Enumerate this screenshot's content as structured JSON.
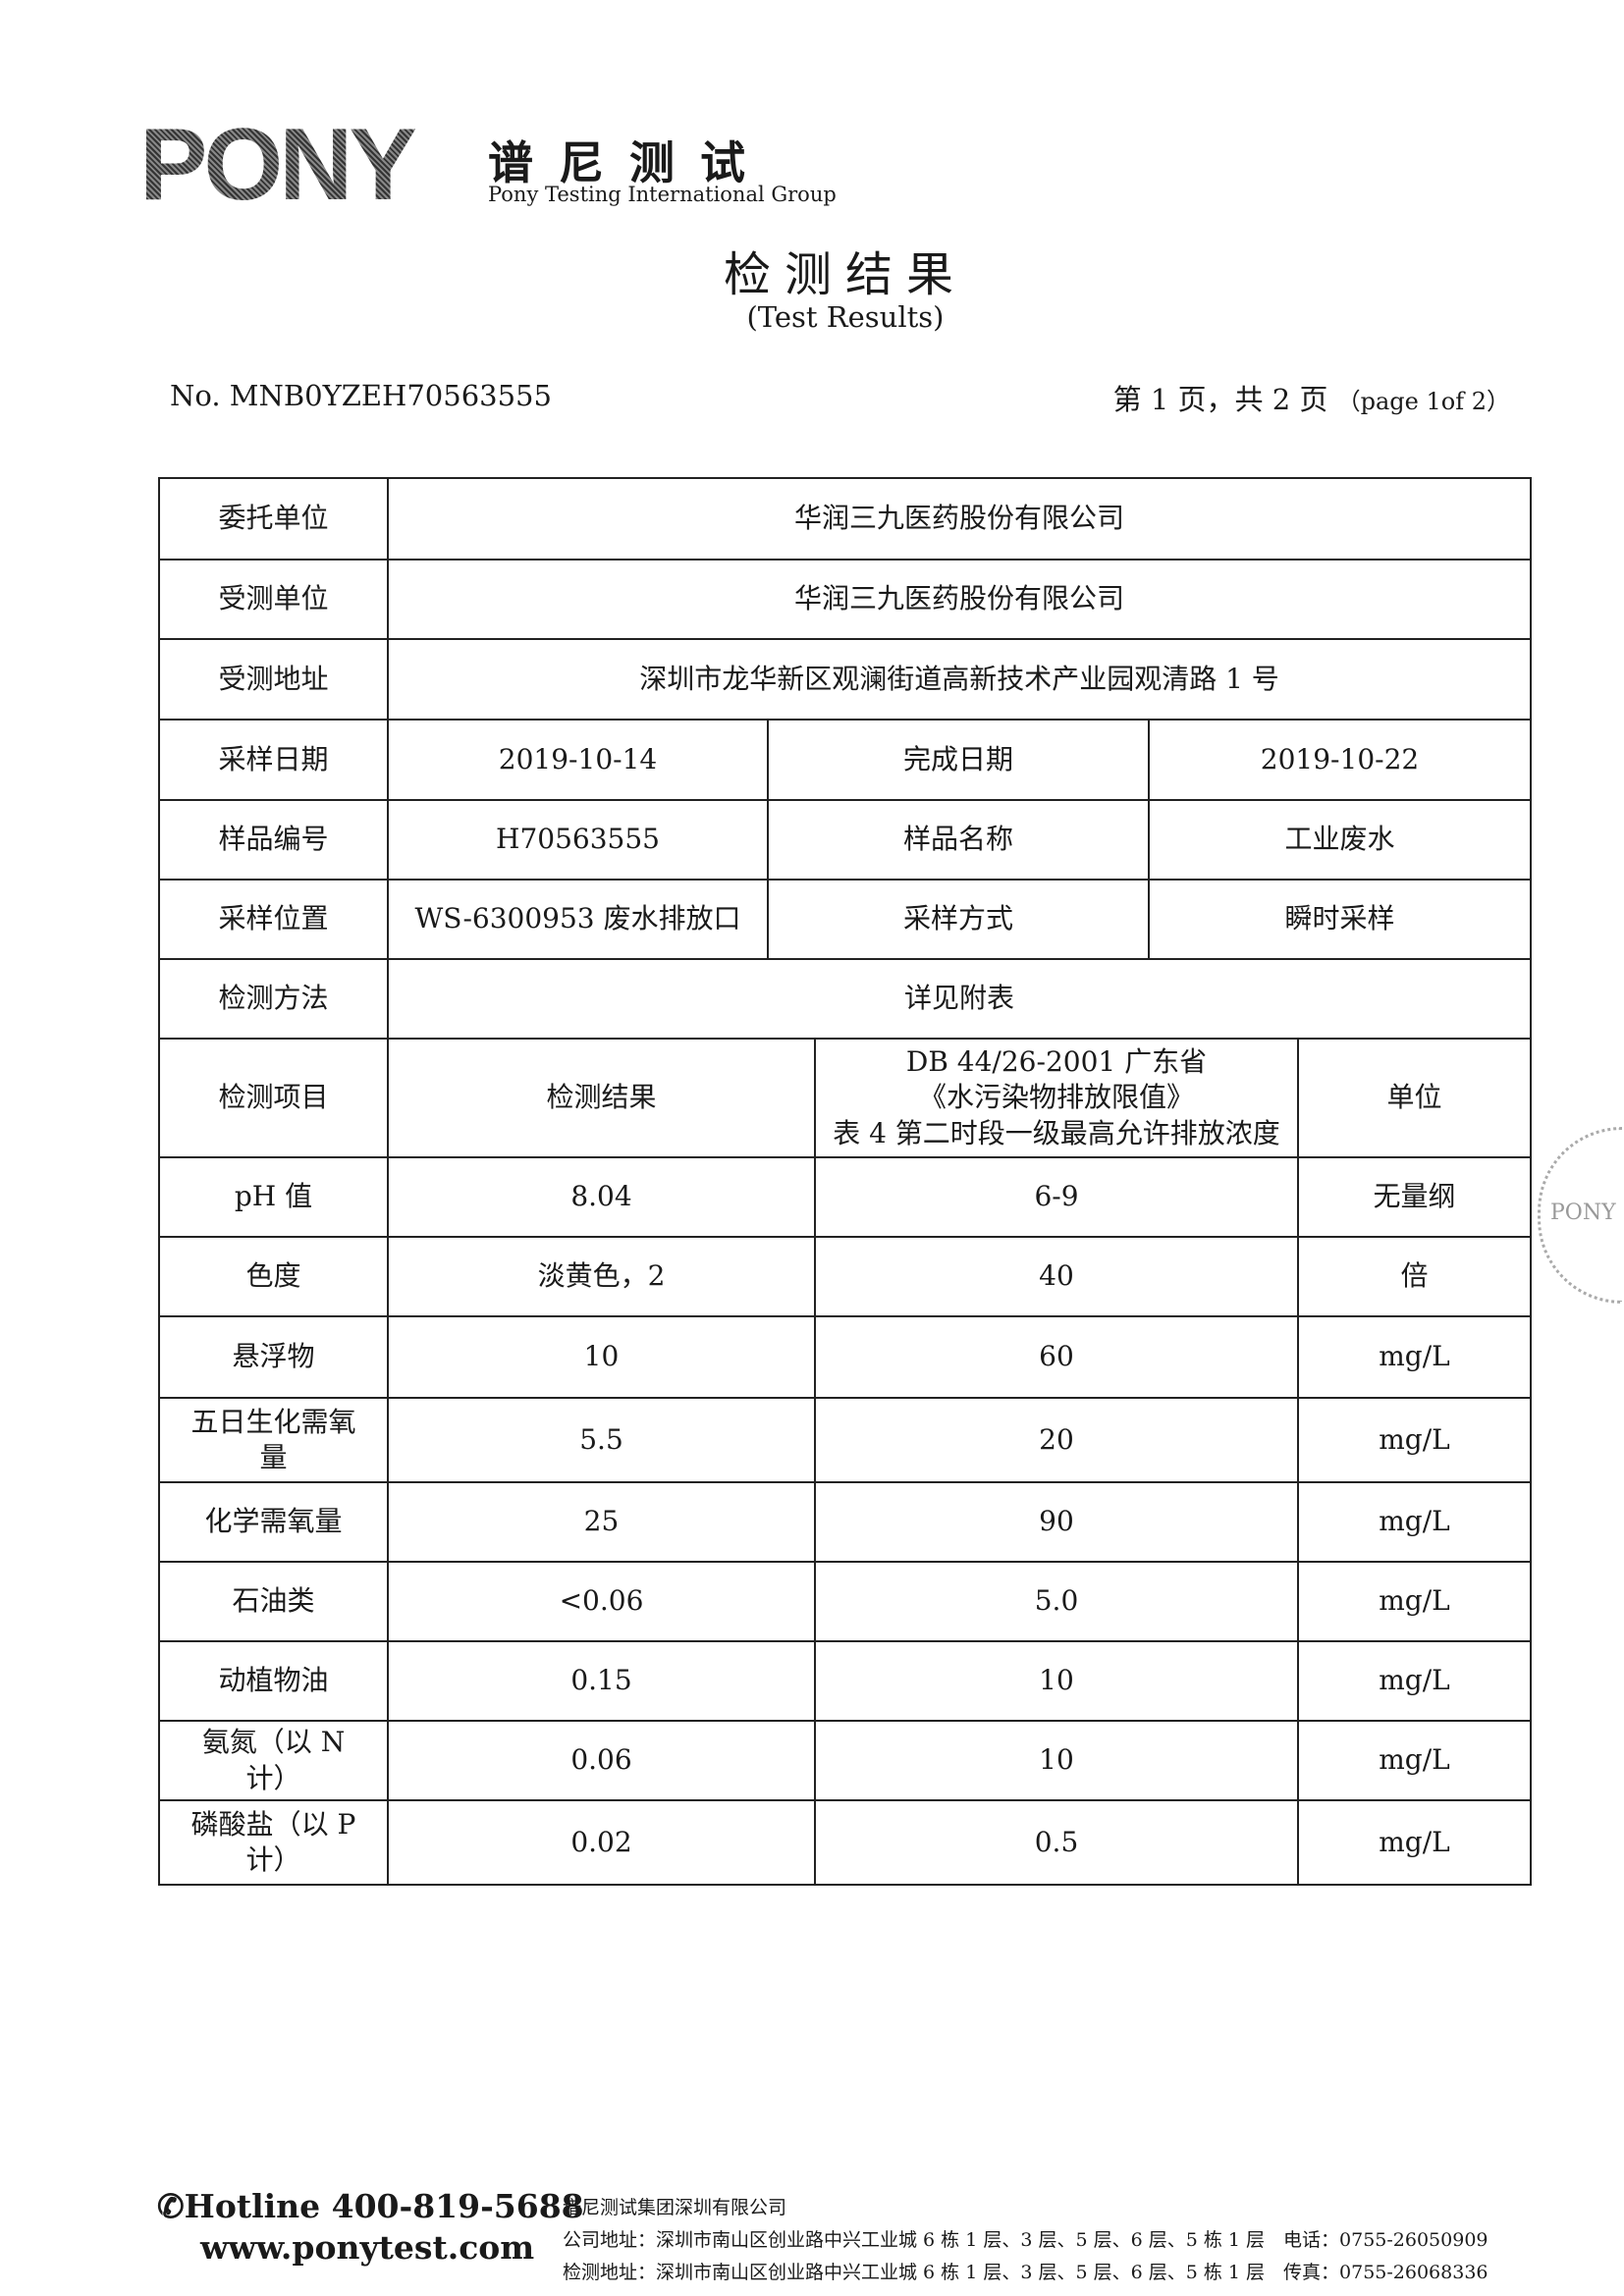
{
  "header": {
    "logo_text": "PONY",
    "brand_cn": "谱尼测试",
    "brand_en": "Pony Testing International Group",
    "title": "检测结果",
    "subtitle": "(Test Results)",
    "doc_no": "No. MNB0YZEH70563555",
    "page_cn": "第 1 页，共 2 页",
    "page_en": "（page 1of 2）"
  },
  "info": {
    "client_label": "委托单位",
    "client": "华润三九医药股份有限公司",
    "tested_label": "受测单位",
    "tested": "华润三九医药股份有限公司",
    "address_label": "受测地址",
    "address": "深圳市龙华新区观澜街道高新技术产业园观清路 1 号",
    "sampling_date_label": "采样日期",
    "sampling_date": "2019-10-14",
    "completion_date_label": "完成日期",
    "completion_date": "2019-10-22",
    "sample_no_label": "样品编号",
    "sample_no": "H70563555",
    "sample_name_label": "样品名称",
    "sample_name": "工业废水",
    "location_label": "采样位置",
    "location": "WS-6300953 废水排放口",
    "method_label": "采样方式",
    "method": "瞬时采样",
    "test_method_label": "检测方法",
    "test_method": "详见附表"
  },
  "results": {
    "headers": {
      "item": "检测项目",
      "result": "检测结果",
      "limit_line1": "DB 44/26-2001 广东省",
      "limit_line2": "《水污染物排放限值》",
      "limit_line3": "表 4 第二时段一级最高允许排放浓度",
      "unit": "单位"
    },
    "rows": [
      {
        "item": "pH 值",
        "result": "8.04",
        "limit": "6-9",
        "unit": "无量纲"
      },
      {
        "item": "色度",
        "result": "淡黄色，2",
        "limit": "40",
        "unit": "倍"
      },
      {
        "item": "悬浮物",
        "result": "10",
        "limit": "60",
        "unit": "mg/L"
      },
      {
        "item": "五日生化需氧量",
        "result": "5.5",
        "limit": "20",
        "unit": "mg/L"
      },
      {
        "item": "化学需氧量",
        "result": "25",
        "limit": "90",
        "unit": "mg/L"
      },
      {
        "item": "石油类",
        "result": "<0.06",
        "limit": "5.0",
        "unit": "mg/L"
      },
      {
        "item": "动植物油",
        "result": "0.15",
        "limit": "10",
        "unit": "mg/L"
      },
      {
        "item": "氨氮（以 N 计）",
        "result": "0.06",
        "limit": "10",
        "unit": "mg/L"
      },
      {
        "item": "磷酸盐（以 P 计）",
        "result": "0.02",
        "limit": "0.5",
        "unit": "mg/L"
      }
    ]
  },
  "stamp": {
    "text": "PONY"
  },
  "footer": {
    "hotline": "Hotline 400-819-5688",
    "website": "www.ponytest.com",
    "company": "谱尼测试集团深圳有限公司",
    "company_address": "公司地址：深圳市南山区创业路中兴工业城 6 栋 1 层、3 层、5 层、6 层、5 栋 1 层　电话：0755-26050909",
    "lab_address": "检测地址：深圳市南山区创业路中兴工业城 6 栋 1 层、3 层、5 层、6 层、5 栋 1 层　传真：0755-26068336"
  }
}
